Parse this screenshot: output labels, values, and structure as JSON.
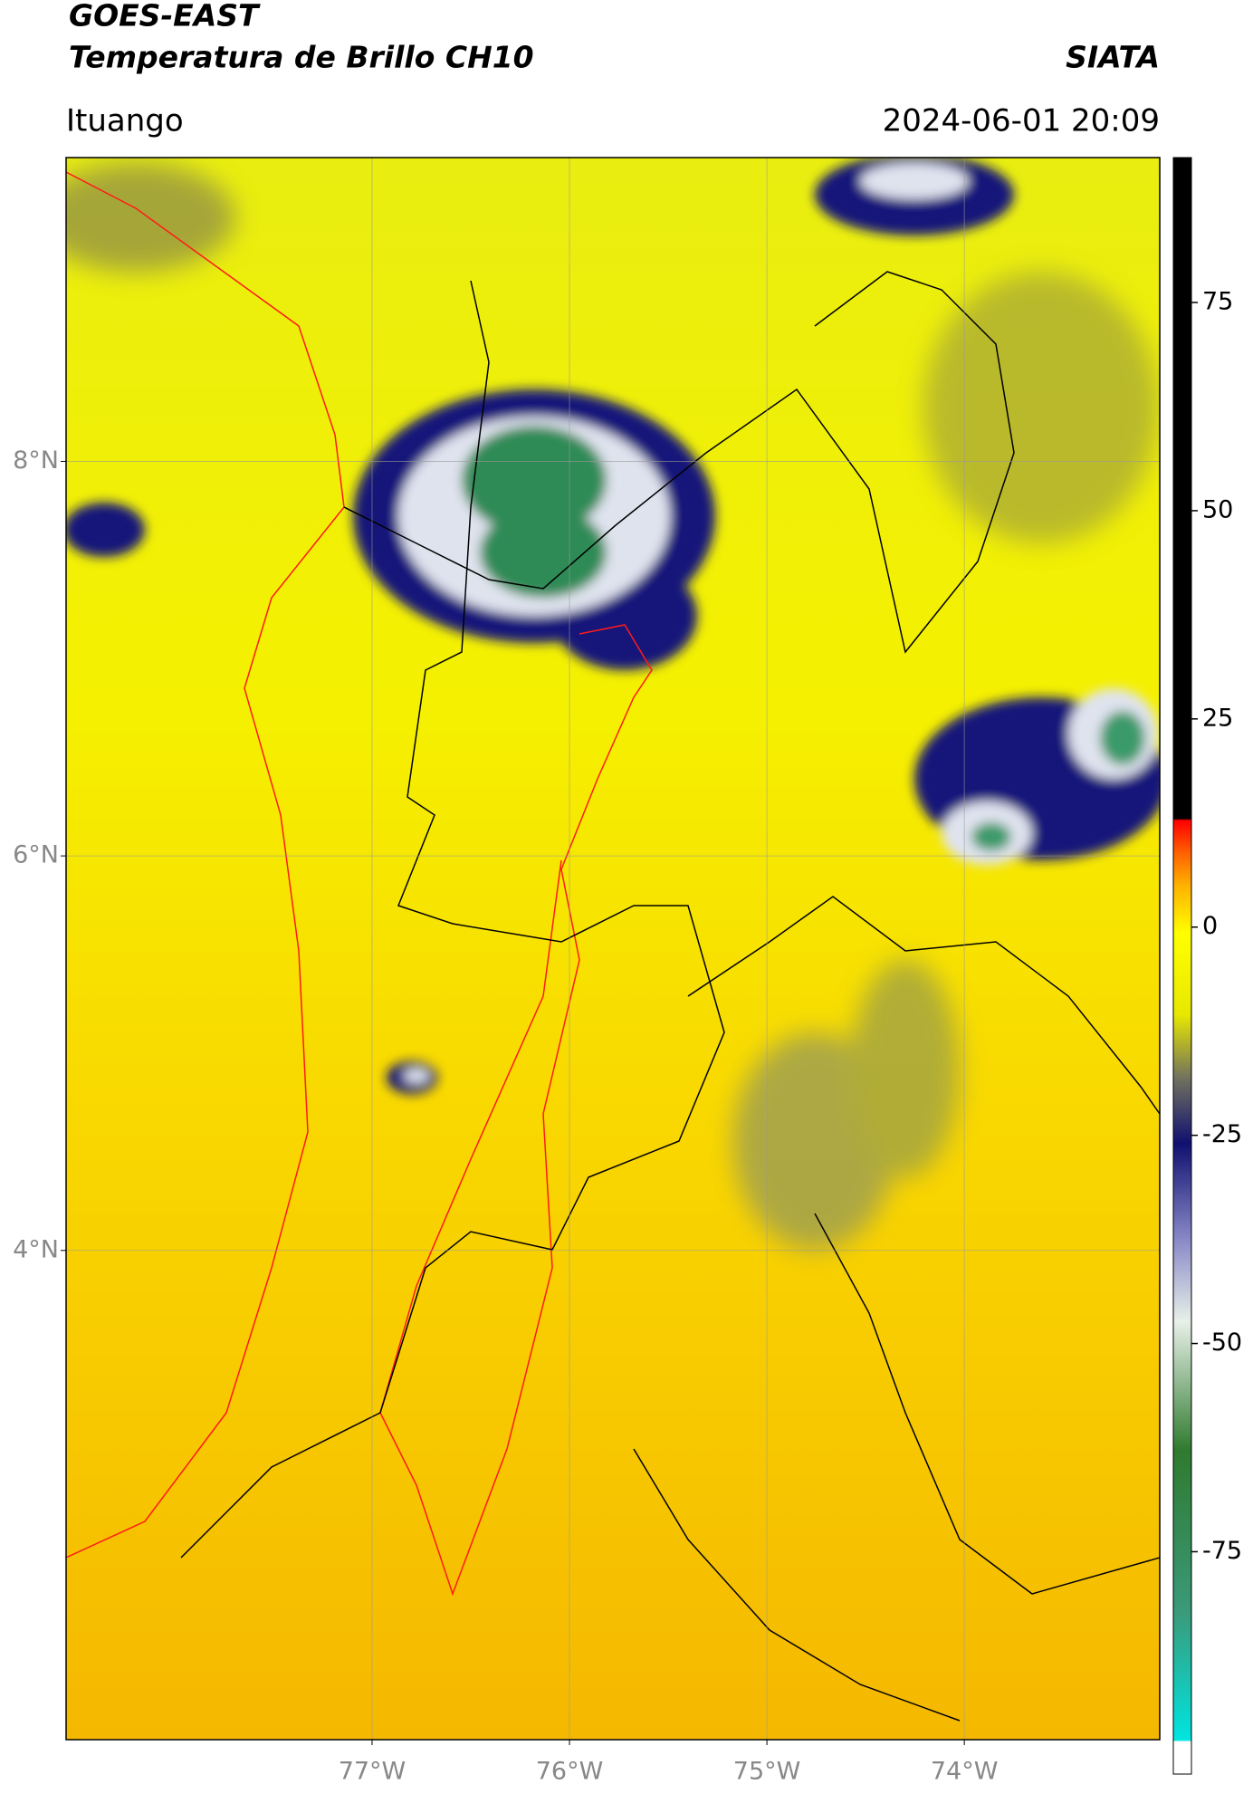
{
  "header": {
    "title": "GOES-EAST",
    "subtitle": "Temperatura de Brillo CH10",
    "brand": "SIATA",
    "location": "Ituango",
    "timestamp": "2024-06-01 20:09"
  },
  "chart_data": {
    "type": "map",
    "xlim": [
      -78.55,
      -73.01
    ],
    "ylim": [
      1.52,
      9.54
    ],
    "xticks": [
      {
        "value": -77,
        "label": "77°W"
      },
      {
        "value": -76,
        "label": "76°W"
      },
      {
        "value": -75,
        "label": "75°W"
      },
      {
        "value": -74,
        "label": "74°W"
      }
    ],
    "yticks": [
      {
        "value": 4,
        "label": "4°N"
      },
      {
        "value": 6,
        "label": "6°N"
      },
      {
        "value": 8,
        "label": "8°N"
      }
    ],
    "grid": true,
    "colorbar": {
      "lim": [
        -101.7,
        92.4
      ],
      "ticks": [
        -75,
        -50,
        -25,
        0,
        25,
        50,
        75
      ]
    }
  }
}
